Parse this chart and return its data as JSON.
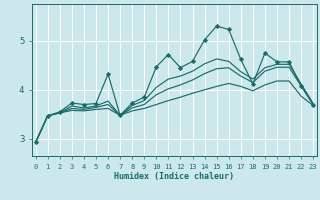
{
  "xlabel": "Humidex (Indice chaleur)",
  "bg_color": "#cce8ec",
  "grid_color": "#ffffff",
  "line_color": "#1a6b6b",
  "x_ticks": [
    0,
    1,
    2,
    3,
    4,
    5,
    6,
    7,
    8,
    9,
    10,
    11,
    12,
    13,
    14,
    15,
    16,
    17,
    18,
    19,
    20,
    21,
    22,
    23
  ],
  "y_ticks": [
    3,
    4,
    5
  ],
  "ylim": [
    2.65,
    5.75
  ],
  "xlim": [
    -0.3,
    23.3
  ],
  "series": [
    [
      2.93,
      3.47,
      3.55,
      3.73,
      3.7,
      3.72,
      4.32,
      3.48,
      3.73,
      3.85,
      4.47,
      4.72,
      4.45,
      4.58,
      5.02,
      5.3,
      5.23,
      4.62,
      4.12,
      4.75,
      4.57,
      4.57,
      4.08,
      3.7
    ],
    [
      2.93,
      3.47,
      3.53,
      3.67,
      3.63,
      3.67,
      3.77,
      3.48,
      3.68,
      3.78,
      4.05,
      4.22,
      4.28,
      4.38,
      4.53,
      4.63,
      4.58,
      4.37,
      4.22,
      4.45,
      4.52,
      4.52,
      4.12,
      3.72
    ],
    [
      2.93,
      3.47,
      3.53,
      3.62,
      3.6,
      3.64,
      3.7,
      3.48,
      3.63,
      3.7,
      3.9,
      4.02,
      4.1,
      4.2,
      4.33,
      4.43,
      4.45,
      4.28,
      4.15,
      4.38,
      4.46,
      4.46,
      4.08,
      3.7
    ],
    [
      2.93,
      3.47,
      3.53,
      3.58,
      3.57,
      3.6,
      3.62,
      3.48,
      3.57,
      3.62,
      3.7,
      3.78,
      3.85,
      3.93,
      4.0,
      4.07,
      4.13,
      4.07,
      3.98,
      4.1,
      4.18,
      4.18,
      3.87,
      3.68
    ]
  ]
}
